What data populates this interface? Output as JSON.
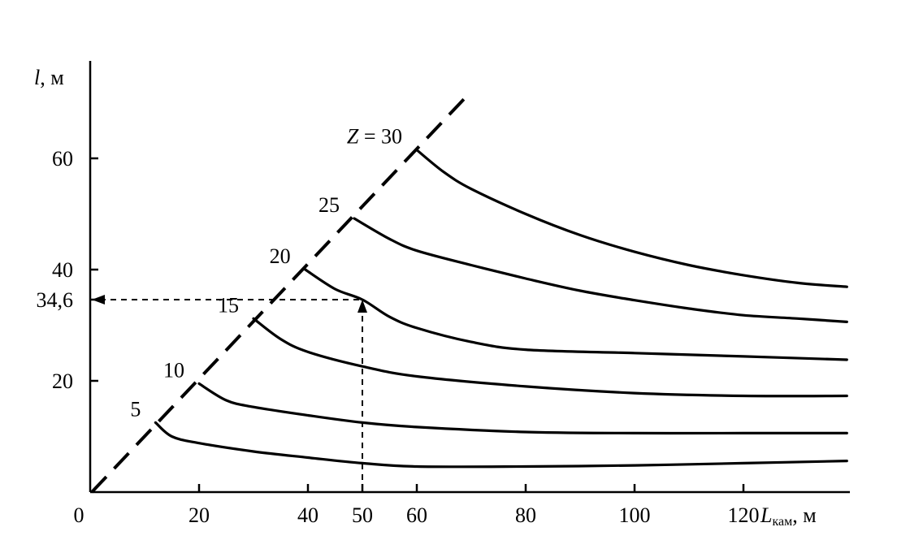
{
  "chart_data": {
    "type": "line",
    "title": "",
    "xlabel": {
      "main": "L",
      "sub": "кам",
      "unit": ", м"
    },
    "ylabel": {
      "main": "l",
      "unit": ", м"
    },
    "xlim": [
      0,
      140
    ],
    "ylim": [
      0,
      80
    ],
    "x_ticks": [
      {
        "value": 0,
        "label": "0"
      },
      {
        "value": 20,
        "label": "20"
      },
      {
        "value": 40,
        "label": "40"
      },
      {
        "value": 50,
        "label": "50"
      },
      {
        "value": 60,
        "label": "60"
      },
      {
        "value": 80,
        "label": "80"
      },
      {
        "value": 100,
        "label": "100"
      },
      {
        "value": 120,
        "label": "120"
      }
    ],
    "y_ticks": [
      {
        "value": 20,
        "label": "20"
      },
      {
        "value": 34.6,
        "label": "34,6"
      },
      {
        "value": 40,
        "label": "40"
      },
      {
        "value": 60,
        "label": "60"
      }
    ],
    "grid": false,
    "legend": "none",
    "boundary_line": {
      "from": [
        0,
        0
      ],
      "to": [
        69,
        71
      ],
      "style": "dashed"
    },
    "series": [
      {
        "name": "5",
        "points": [
          [
            12,
            12.5
          ],
          [
            15,
            10
          ],
          [
            20,
            8.8
          ],
          [
            30,
            7.3
          ],
          [
            40,
            6.2
          ],
          [
            50,
            5.2
          ],
          [
            60,
            4.6
          ],
          [
            80,
            4.6
          ],
          [
            100,
            4.8
          ],
          [
            120,
            5.2
          ],
          [
            139,
            5.6
          ]
        ]
      },
      {
        "name": "10",
        "points": [
          [
            20,
            19.5
          ],
          [
            25,
            16.5
          ],
          [
            30,
            15.3
          ],
          [
            40,
            13.8
          ],
          [
            50,
            12.5
          ],
          [
            60,
            11.7
          ],
          [
            80,
            10.8
          ],
          [
            100,
            10.6
          ],
          [
            120,
            10.6
          ],
          [
            139,
            10.6
          ]
        ]
      },
      {
        "name": "15",
        "points": [
          [
            30,
            31.2
          ],
          [
            35,
            27.5
          ],
          [
            40,
            25.2
          ],
          [
            50,
            22.6
          ],
          [
            60,
            20.8
          ],
          [
            80,
            19
          ],
          [
            100,
            17.8
          ],
          [
            120,
            17.3
          ],
          [
            139,
            17.3
          ]
        ]
      },
      {
        "name": "20",
        "points": [
          [
            39.5,
            40
          ],
          [
            45,
            36.5
          ],
          [
            50,
            34.6
          ],
          [
            55,
            31.5
          ],
          [
            60,
            29.5
          ],
          [
            70,
            27
          ],
          [
            80,
            25.6
          ],
          [
            100,
            25
          ],
          [
            120,
            24.4
          ],
          [
            139,
            23.8
          ]
        ]
      },
      {
        "name": "25",
        "points": [
          [
            48.5,
            49.2
          ],
          [
            55,
            45.5
          ],
          [
            60,
            43.4
          ],
          [
            70,
            40.8
          ],
          [
            80,
            38.4
          ],
          [
            90,
            36.2
          ],
          [
            100,
            34.5
          ],
          [
            110,
            33
          ],
          [
            120,
            31.8
          ],
          [
            130,
            31.2
          ],
          [
            139,
            30.6
          ]
        ]
      },
      {
        "name": "30",
        "points": [
          [
            60,
            61.5
          ],
          [
            65,
            57.5
          ],
          [
            70,
            54.5
          ],
          [
            80,
            50
          ],
          [
            90,
            46.2
          ],
          [
            100,
            43.2
          ],
          [
            110,
            40.8
          ],
          [
            120,
            39
          ],
          [
            130,
            37.6
          ],
          [
            139,
            36.9
          ]
        ]
      }
    ],
    "curve_labels": [
      {
        "series": "5",
        "text": "5"
      },
      {
        "series": "10",
        "text": "10"
      },
      {
        "series": "15",
        "text": "15"
      },
      {
        "series": "20",
        "text": "20"
      },
      {
        "series": "25",
        "text": "25"
      },
      {
        "series": "30",
        "text": "Z = 30"
      }
    ],
    "reading": {
      "x": 50,
      "y": 34.6
    }
  }
}
